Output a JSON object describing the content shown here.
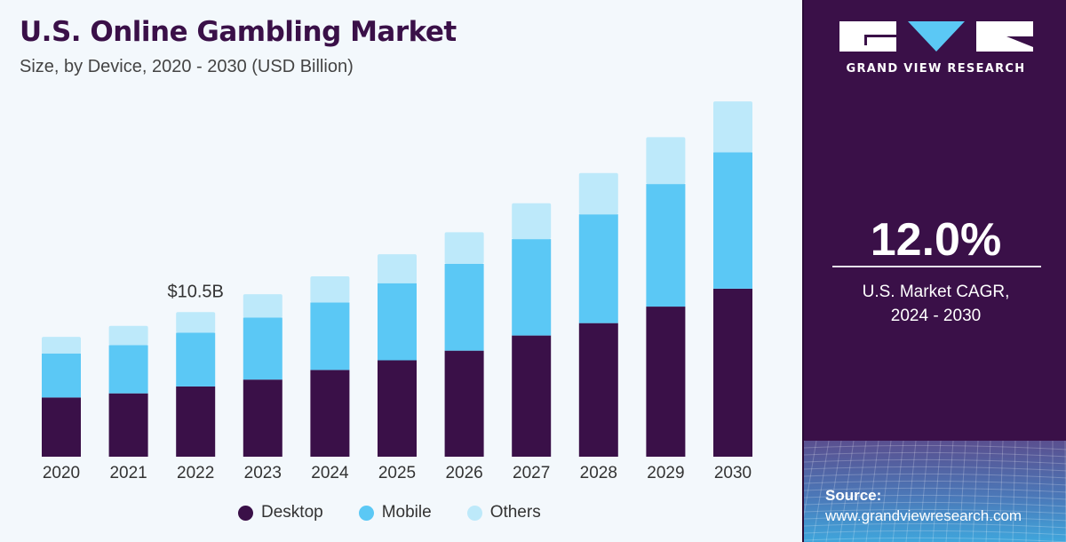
{
  "header": {
    "title": "U.S. Online Gambling Market",
    "subtitle": "Size, by Device, 2020 - 2030 (USD Billion)"
  },
  "brand": {
    "name": "GRAND VIEW RESEARCH",
    "logo_icon": "gvr-logo-icon"
  },
  "stat": {
    "value": "12.0%",
    "label_line1": "U.S. Market CAGR,",
    "label_line2": "2024 - 2030"
  },
  "source": {
    "label": "Source:",
    "url": "www.grandviewresearch.com"
  },
  "colors": {
    "desktop": "#3a1048",
    "mobile": "#5bc8f5",
    "others": "#bde9fa",
    "panel": "#3a1048",
    "background": "#f3f8fc"
  },
  "chart_data": {
    "type": "bar",
    "stacked": true,
    "title": "U.S. Online Gambling Market",
    "subtitle": "Size, by Device, 2020 - 2030 (USD Billion)",
    "xlabel": "",
    "ylabel": "USD Billion",
    "ylim": [
      0,
      26
    ],
    "grid": false,
    "legend_position": "bottom",
    "categories": [
      "2020",
      "2021",
      "2022",
      "2023",
      "2024",
      "2025",
      "2026",
      "2027",
      "2028",
      "2029",
      "2030"
    ],
    "series": [
      {
        "name": "Desktop",
        "color": "#3a1048",
        "values": [
          4.3,
          4.6,
          5.1,
          5.6,
          6.3,
          7.0,
          7.7,
          8.8,
          9.7,
          10.9,
          12.2
        ]
      },
      {
        "name": "Mobile",
        "color": "#5bc8f5",
        "values": [
          3.2,
          3.5,
          3.9,
          4.5,
          4.9,
          5.6,
          6.3,
          7.0,
          7.9,
          8.9,
          9.9
        ]
      },
      {
        "name": "Others",
        "color": "#bde9fa",
        "values": [
          1.2,
          1.4,
          1.5,
          1.7,
          1.9,
          2.1,
          2.3,
          2.6,
          3.0,
          3.4,
          3.7
        ]
      }
    ],
    "annotations": [
      {
        "category": "2022",
        "text": "$10.5B"
      }
    ]
  }
}
